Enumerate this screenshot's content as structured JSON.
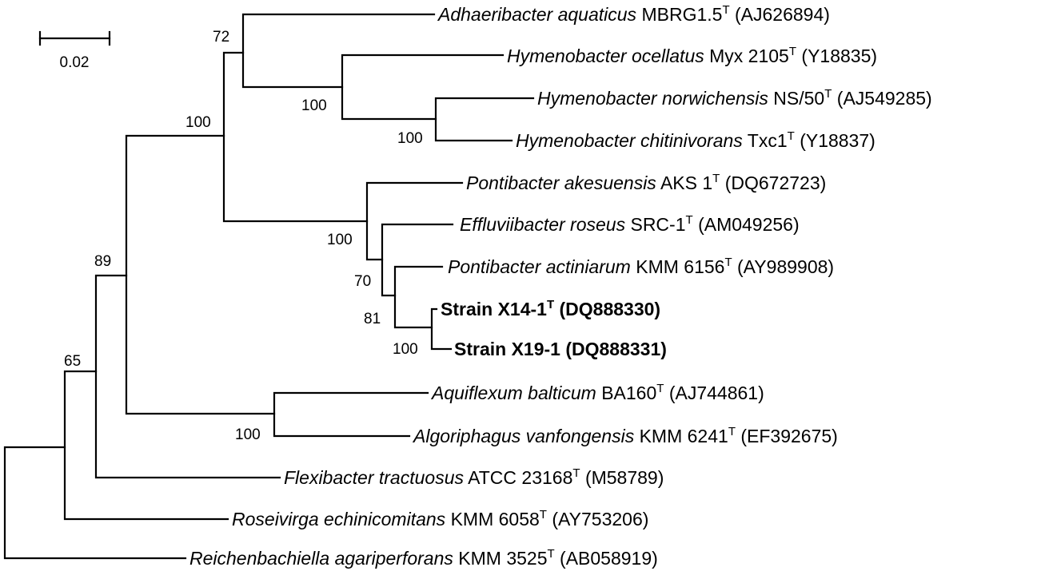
{
  "scale_bar": {
    "label": "0.02"
  },
  "taxa": [
    {
      "id": "adhaeribacter",
      "species": "Adhaeribacter aquaticus",
      "strain": "MBRG1.5",
      "type_strain": "T",
      "accession": "(AJ626894)",
      "bold": false
    },
    {
      "id": "hymeno-ocellatus",
      "species": "Hymenobacter ocellatus",
      "strain": "Myx 2105",
      "type_strain": "T",
      "accession": "(Y18835)",
      "bold": false
    },
    {
      "id": "hymeno-norwichensis",
      "species": "Hymenobacter norwichensis",
      "strain": "NS/50",
      "type_strain": "T",
      "accession": "(AJ549285)",
      "bold": false
    },
    {
      "id": "hymeno-chitinivorans",
      "species": "Hymenobacter chitinivorans",
      "strain": "Txc1",
      "type_strain": "T",
      "accession": "(Y18837)",
      "bold": false
    },
    {
      "id": "pontibacter-akesuensis",
      "species": "Pontibacter akesuensis",
      "strain": "AKS 1",
      "type_strain": "T",
      "accession": "(DQ672723)",
      "bold": false
    },
    {
      "id": "effluviibacter",
      "species": "Effluviibacter roseus",
      "strain": "SRC-1",
      "type_strain": "T",
      "accession": "(AM049256)",
      "bold": false
    },
    {
      "id": "pontibacter-actiniarum",
      "species": "Pontibacter actiniarum",
      "strain": "KMM 6156",
      "type_strain": "T",
      "accession": "(AY989908)",
      "bold": false
    },
    {
      "id": "strain-x14",
      "species": "",
      "strain": "Strain X14-1",
      "type_strain": "T",
      "accession": "(DQ888330)",
      "bold": true
    },
    {
      "id": "strain-x19",
      "species": "",
      "strain": "Strain X19-1",
      "type_strain": "",
      "accession": "(DQ888331)",
      "bold": true
    },
    {
      "id": "aquiflexum",
      "species": "Aquiflexum balticum",
      "strain": "BA160",
      "type_strain": "T",
      "accession": "(AJ744861)",
      "bold": false
    },
    {
      "id": "algoriphagus",
      "species": "Algoriphagus vanfongensis",
      "strain": "KMM 6241",
      "type_strain": "T",
      "accession": "(EF392675)",
      "bold": false
    },
    {
      "id": "flexibacter",
      "species": "Flexibacter tractuosus",
      "strain": "ATCC 23168",
      "type_strain": "T",
      "accession": "(M58789)",
      "bold": false
    },
    {
      "id": "roseivirga",
      "species": "Roseivirga echinicomitans",
      "strain": "KMM 6058",
      "type_strain": "T",
      "accession": "(AY753206)",
      "bold": false
    },
    {
      "id": "reichenbachiella",
      "species": "Reichenbachiella agariperforans",
      "strain": "KMM 3525",
      "type_strain": "T",
      "accession": "(AB058919)",
      "bold": false
    }
  ],
  "bootstrap": {
    "n72": "72",
    "n100_hymeno": "100",
    "n100_norw_chit": "100",
    "n100_main": "100",
    "n100_pontibacter": "100",
    "n70": "70",
    "n81": "81",
    "n100_strains": "100",
    "n89": "89",
    "n100_aquiflexum": "100",
    "n65": "65"
  }
}
